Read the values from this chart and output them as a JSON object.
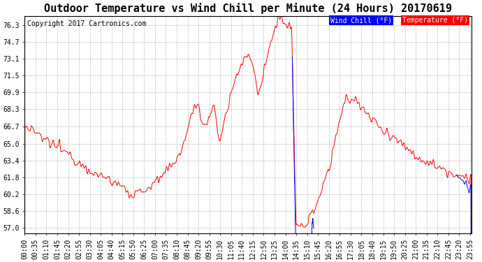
{
  "title": "Outdoor Temperature vs Wind Chill per Minute (24 Hours) 20170619",
  "copyright": "Copyright 2017 Cartronics.com",
  "legend_wind_chill": "Wind Chill (°F)",
  "legend_temperature": "Temperature (°F)",
  "yticks": [
    57.0,
    58.6,
    60.2,
    61.8,
    63.4,
    65.0,
    66.7,
    68.3,
    69.9,
    71.5,
    73.1,
    74.7,
    76.3
  ],
  "ylim": [
    56.5,
    77.2
  ],
  "background_color": "#ffffff",
  "grid_color": "#bbbbbb",
  "temp_color": "#ff0000",
  "wind_chill_color": "#0000ff",
  "title_fontsize": 11,
  "copyright_fontsize": 7,
  "tick_label_fontsize": 7,
  "xtick_interval": 35,
  "legend_wc_bg": "#0000ff",
  "legend_temp_bg": "#ff0000",
  "legend_text_color": "#ffffff"
}
